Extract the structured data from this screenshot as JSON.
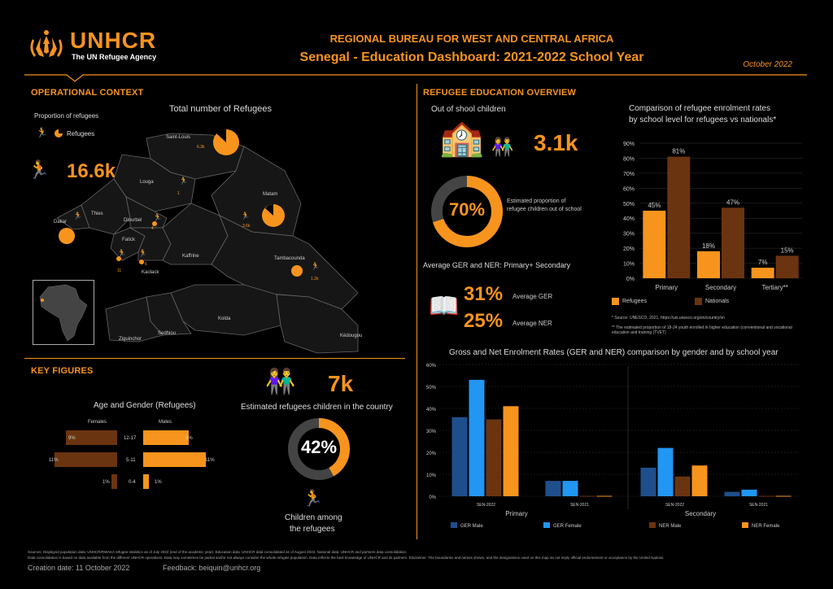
{
  "header": {
    "brand": "UNHCR",
    "brand_sub": "The UN Refugee Agency",
    "title_line1": "REGIONAL BUREAU FOR WEST AND CENTRAL AFRICA",
    "title_line2": "Senegal - Education Dashboard: 2021-2022 School Year",
    "date": "October 2022"
  },
  "context": {
    "title": "OPERATIONAL CONTEXT",
    "proportion_label": "Proportion of refugees",
    "refugees_legend": "Refugees",
    "map_title": "Total number of Refugees",
    "total_refugees": "16.6k",
    "regions": [
      {
        "name": "Saint-Louis",
        "value": "6.3k"
      },
      {
        "name": "Louga",
        "value": "1"
      },
      {
        "name": "Thies",
        "value": ""
      },
      {
        "name": "Dakar",
        "value": ""
      },
      {
        "name": "Diourbel",
        "value": "4"
      },
      {
        "name": "Fatick",
        "value": "11"
      },
      {
        "name": "Kaolack",
        "value": "6"
      },
      {
        "name": "Kaffrine",
        "value": ""
      },
      {
        "name": "Matam",
        "value": "3.6k"
      },
      {
        "name": "Tambacounda",
        "value": "1.2k"
      },
      {
        "name": "Kolda",
        "value": ""
      },
      {
        "name": "Sedhiou",
        "value": ""
      },
      {
        "name": "Ziguinchor",
        "value": ""
      },
      {
        "name": "Kédougou",
        "value": ""
      }
    ]
  },
  "key_figures": {
    "title": "KEY FIGURES",
    "age_gender_title": "Age and Gender (Refugees)",
    "females_label": "Females",
    "males_label": "Males",
    "rows": [
      {
        "age": "12-17",
        "female": "9%",
        "male": "8%"
      },
      {
        "age": "5-11",
        "female": "11%",
        "male": "11%"
      },
      {
        "age": "0-4",
        "female": "1%",
        "male": "1%"
      }
    ],
    "age_data": [
      {
        "female": 9,
        "male": 8
      },
      {
        "female": 11,
        "male": 11
      },
      {
        "female": 1,
        "male": 1
      }
    ],
    "children_count": "7k",
    "children_label": "Estimated refugees children in the country",
    "children_pct": "42%",
    "children_pct_value": 42,
    "children_among_1": "Children among",
    "children_among_2": "the refugees"
  },
  "overview": {
    "title": "REFUGEE EDUCATION OVERVIEW",
    "oos_label": "Out of shool children",
    "oos_value": "3.1k",
    "oos_pct": "70%",
    "oos_pct_value": 70,
    "oos_desc_1": "Estimated proportion of",
    "oos_desc_2": "refugee children out of school",
    "avg_label": "Average GER and NER: Primary+ Secondary",
    "ger_value": "31%",
    "ger_label": "Average GER",
    "ner_value": "25%",
    "ner_label": "Average NER"
  },
  "chart_data": [
    {
      "type": "bar",
      "title": "Comparison of refugee enrolment rates by school level for refugees vs nationals*",
      "title_line1": "Comparison of refugee enrolment rates",
      "title_line2": "by school level for refugees vs nationals*",
      "categories": [
        "Primary",
        "Secondary",
        "Tertiary**"
      ],
      "series": [
        {
          "name": "Refugees",
          "values": [
            45,
            18,
            7
          ],
          "color": "#f7941d"
        },
        {
          "name": "Nationals",
          "values": [
            81,
            47,
            15
          ],
          "color": "#6b3410"
        }
      ],
      "ylim": [
        0,
        90
      ],
      "yticks": [
        "0%",
        "10%",
        "20%",
        "30%",
        "40%",
        "50%",
        "60%",
        "70%",
        "80%",
        "90%"
      ],
      "source": "* Source: UNESCO, 2021, https://uis.unesco.org/en/country/sn",
      "note": "** The estimated proportion of 18-24 youth enrolled in higher education (conventional and vocational education and training (TVET)"
    },
    {
      "type": "bar",
      "title": "Gross and Net Enrolment Rates (GER and NER) comparison by gender and by school year",
      "groups": [
        {
          "name": "Primary",
          "years": [
            "SEN-2022",
            "SEN-2021"
          ]
        },
        {
          "name": "Secondary",
          "years": [
            "SEN-2022",
            "SEN-2021"
          ]
        }
      ],
      "series": [
        {
          "name": "GER Male",
          "color": "#1f4e8c",
          "values": [
            36,
            7,
            13,
            2
          ]
        },
        {
          "name": "GER Female",
          "color": "#2196f3",
          "values": [
            53,
            7,
            22,
            3
          ]
        },
        {
          "name": "NER Male",
          "color": "#6b3410",
          "values": [
            35,
            0,
            9,
            0
          ]
        },
        {
          "name": "NER Female",
          "color": "#f7941d",
          "values": [
            41,
            0,
            14,
            0
          ]
        }
      ],
      "ylim": [
        0,
        60
      ],
      "yticks": [
        "0%",
        "10%",
        "20%",
        "30%",
        "40%",
        "50%",
        "60%"
      ]
    }
  ],
  "footer": {
    "sources_line1": "Sources: Displayed population data: UNHCR/RWAKA refugee statistics as of July 2022 (end of the academic year). Education data: UNHCR data consolidated as of August 2022. National data: UNHCR and partners data consolidation.",
    "sources_line2": "Data consolidation is based on data available from the different UNHCR operations. Data may sometimes be partial and/or not always consider the whole refugee population. Data reflects the best knowledge of UNHCR and its partners. Disclaimer: The boundaries and names shown, and the designations used on this map do not imply official endorsement or acceptance by the United Nations.",
    "creation": "Creation date: 11 October 2022",
    "feedback": "Feedback: beiquin@unhcr.org"
  }
}
